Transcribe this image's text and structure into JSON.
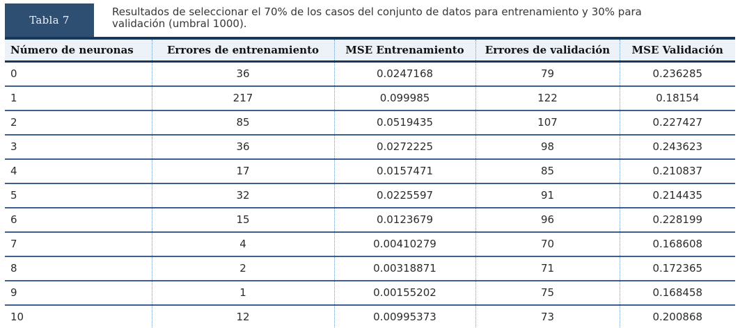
{
  "header": {
    "label": "Tabla 7",
    "caption": "Resultados de seleccionar el 70% de los casos del conjunto de datos para entrenamiento y 30% para validación (umbral 1000)."
  },
  "colors": {
    "accent_dark_navy": "#17375d",
    "label_box_navy": "#2e4e72",
    "header_row_bg": "#edf2f9",
    "row_separator_blue": "#3a5f8f",
    "dotted_separator_blue": "#7096c2",
    "label_text": "#eef2f7",
    "body_text": "#2b2b2b"
  },
  "chart_data": {
    "type": "table",
    "title": "Tabla 7. Resultados de seleccionar el 70% de los casos del conjunto de datos para entrenamiento y 30% para validación (umbral 1000).",
    "columns": [
      "Número de neuronas",
      "Errores de entrenamiento",
      "MSE Entrenamiento",
      "Errores de validación",
      "MSE Validación"
    ],
    "rows": [
      [
        "0",
        "36",
        "0.0247168",
        "79",
        "0.236285"
      ],
      [
        "1",
        "217",
        "0.099985",
        "122",
        "0.18154"
      ],
      [
        "2",
        "85",
        "0.0519435",
        "107",
        "0.227427"
      ],
      [
        "3",
        "36",
        "0.0272225",
        "98",
        "0.243623"
      ],
      [
        "4",
        "17",
        "0.0157471",
        "85",
        "0.210837"
      ],
      [
        "5",
        "32",
        "0.0225597",
        "91",
        "0.214435"
      ],
      [
        "6",
        "15",
        "0.0123679",
        "96",
        "0.228199"
      ],
      [
        "7",
        "4",
        "0.00410279",
        "70",
        "0.168608"
      ],
      [
        "8",
        "2",
        "0.00318871",
        "71",
        "0.172365"
      ],
      [
        "9",
        "1",
        "0.00155202",
        "75",
        "0.168458"
      ],
      [
        "10",
        "12",
        "0.00995373",
        "73",
        "0.200868"
      ]
    ]
  }
}
